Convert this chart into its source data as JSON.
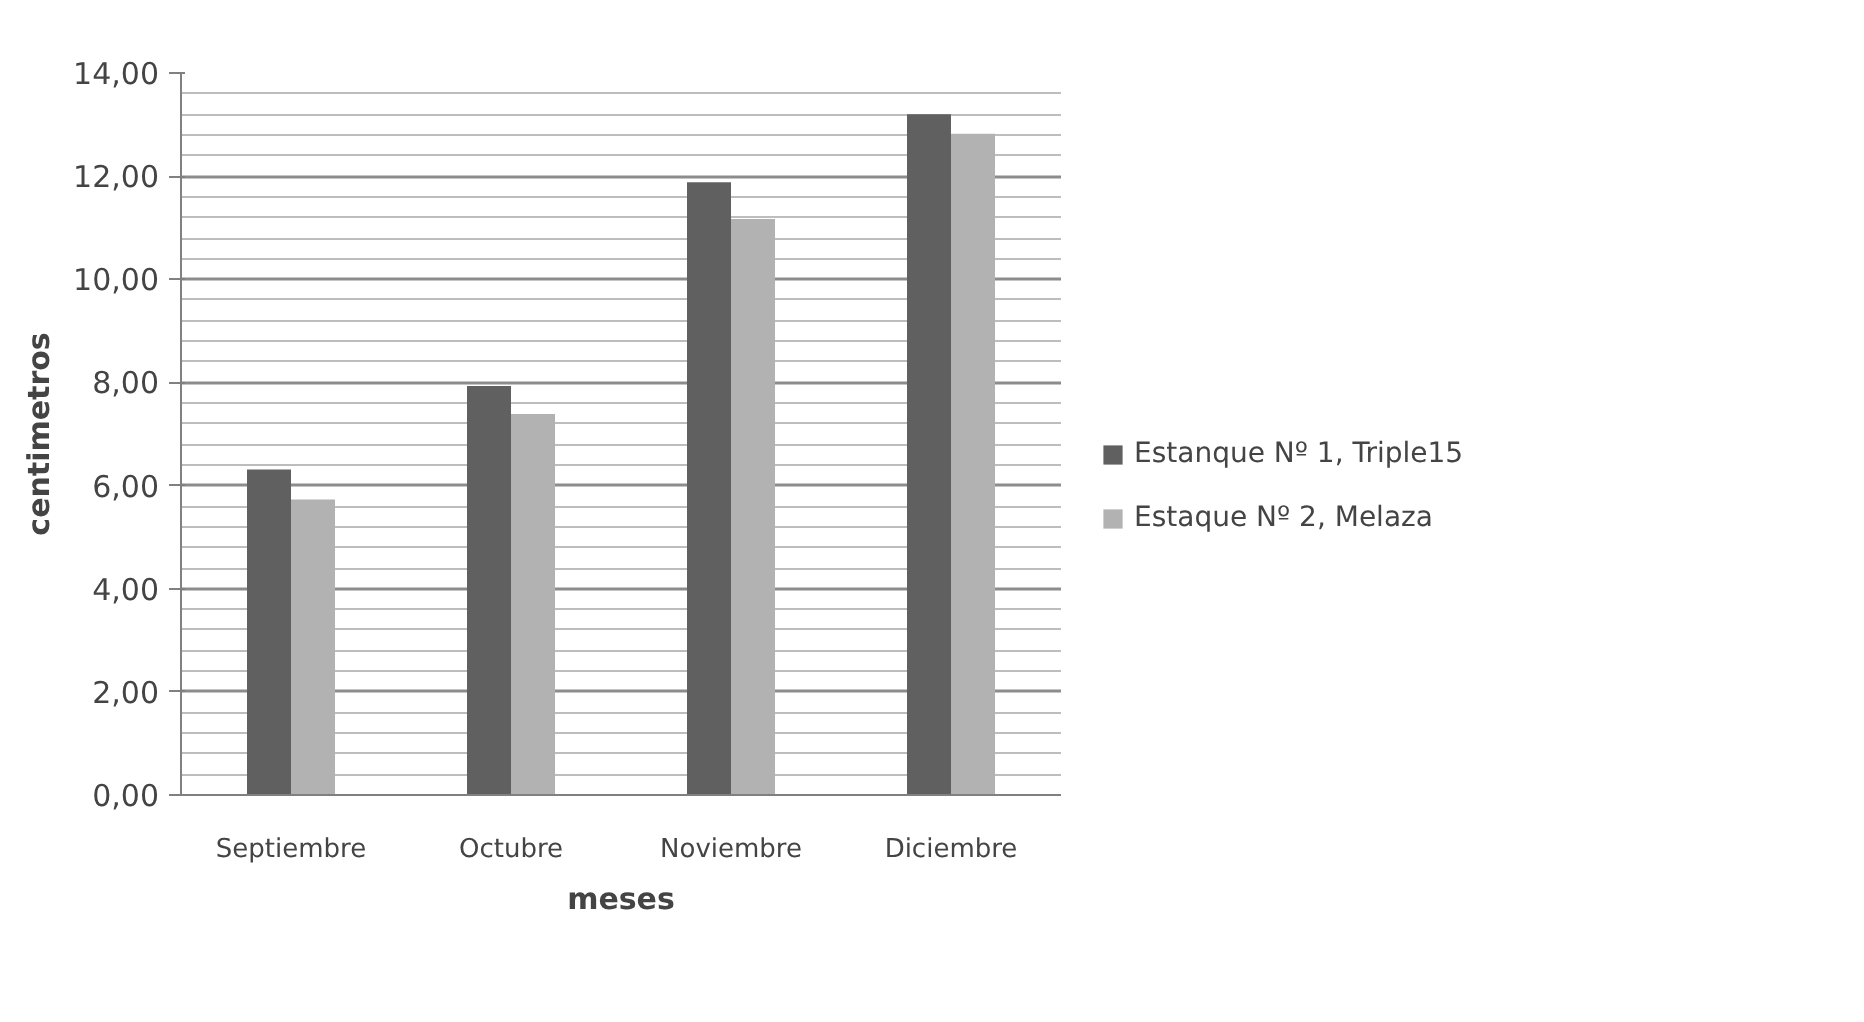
{
  "chart_data": {
    "type": "bar",
    "xlabel": "meses",
    "ylabel": "centimetros",
    "categories": [
      "Septiembre",
      "Octubre",
      "Noviembre",
      "Diciembre"
    ],
    "series": [
      {
        "name": "Estanque Nº 1, Triple15",
        "color": "#606060",
        "values": [
          6.31,
          7.93,
          11.88,
          13.2
        ]
      },
      {
        "name": "Estaque Nº 2, Melaza",
        "color": "#b2b2b2",
        "values": [
          5.73,
          7.39,
          11.17,
          12.82
        ]
      }
    ],
    "ylim": [
      0,
      14
    ],
    "yticks": [
      {
        "value": 0,
        "label": "0,00"
      },
      {
        "value": 2,
        "label": "2,00"
      },
      {
        "value": 4,
        "label": "4,00"
      },
      {
        "value": 6,
        "label": "6,00"
      },
      {
        "value": 8,
        "label": "8,00"
      },
      {
        "value": 10,
        "label": "10,00"
      },
      {
        "value": 12,
        "label": "12,00"
      },
      {
        "value": 14,
        "label": "14,00"
      }
    ],
    "grid": "y",
    "legend": "right"
  }
}
